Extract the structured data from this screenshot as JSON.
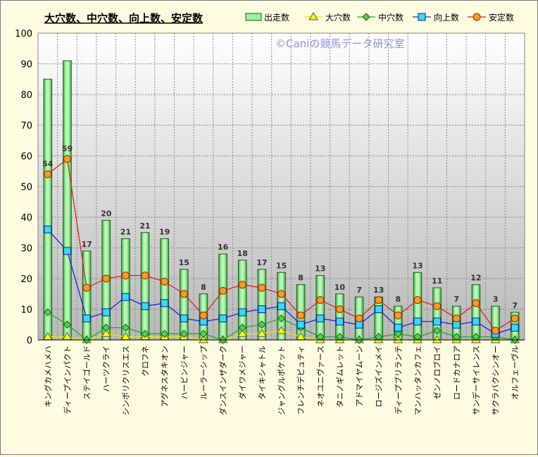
{
  "chart_data": {
    "type": "bar",
    "title": "大穴数、中穴数、向上数、安定数",
    "watermark": "©Caniの競馬データ研究室",
    "xlabel": "",
    "ylabel": "",
    "ylim": [
      0,
      100
    ],
    "yticks": [
      0,
      10,
      20,
      30,
      40,
      50,
      60,
      70,
      80,
      90,
      100
    ],
    "grid": true,
    "legend_position": "top-right",
    "categories": [
      "キングカメハメハ",
      "ディープインパクト",
      "ステイゴールド",
      "ハーツクライ",
      "シンボリクリスエス",
      "クロフネ",
      "アグネスタキオン",
      "ハービンジャー",
      "ルーラーシップ",
      "ダンスインザダーク",
      "ダイワメジャー",
      "タイキシャトル",
      "ジャングルポケット",
      "フレンチデピュティ",
      "ネオユニヴァース",
      "タニノギムレット",
      "アドマイヤムーン",
      "ロージズインメイ",
      "ディープブリランテ",
      "マンハッタンカフェ",
      "ゼンノロブロイ",
      "ロードカナロア",
      "サンデーサイレンス",
      "サクラバクシンオー",
      "オルフェーヴル"
    ],
    "series": [
      {
        "name": "出走数",
        "type": "bar",
        "color": "#9af29a",
        "values": [
          85,
          91,
          29,
          39,
          33,
          35,
          33,
          23,
          15,
          28,
          26,
          23,
          22,
          18,
          21,
          15,
          14,
          14,
          11,
          22,
          17,
          11,
          18,
          11,
          9
        ]
      },
      {
        "name": "大穴数",
        "type": "line",
        "color": "#ffff00",
        "values": [
          1,
          1,
          0,
          2,
          1,
          1,
          1,
          1,
          0,
          0,
          2,
          2,
          3,
          1,
          0,
          0,
          0,
          0,
          0,
          0,
          0,
          0,
          0,
          0,
          0
        ]
      },
      {
        "name": "中穴数",
        "type": "line",
        "color": "#22aa22",
        "values": [
          9,
          5,
          0,
          4,
          4,
          2,
          2,
          2,
          2,
          0,
          4,
          5,
          7,
          4,
          1,
          1,
          0,
          1,
          2,
          1,
          3,
          1,
          1,
          1,
          0
        ]
      },
      {
        "name": "向上数",
        "type": "line",
        "color": "#2222cc",
        "values": [
          36,
          29,
          7,
          9,
          14,
          11,
          12,
          7,
          6,
          7,
          9,
          10,
          11,
          5,
          7,
          6,
          5,
          10,
          4,
          6,
          6,
          5,
          6,
          2,
          4
        ]
      },
      {
        "name": "安定数",
        "type": "line",
        "color": "#dd2222",
        "values": [
          54,
          59,
          17,
          20,
          21,
          21,
          19,
          15,
          8,
          16,
          18,
          17,
          15,
          8,
          13,
          10,
          7,
          13,
          8,
          13,
          11,
          7,
          12,
          3,
          7
        ]
      }
    ],
    "data_labels_series": "安定数"
  }
}
